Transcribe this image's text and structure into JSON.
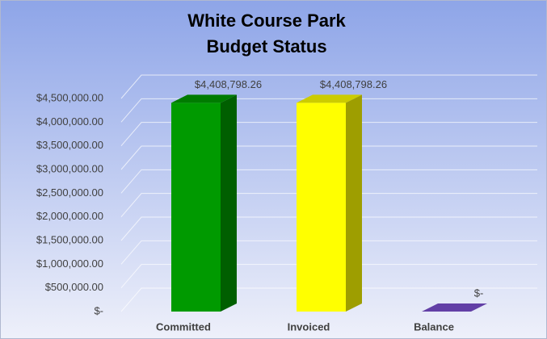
{
  "chart_data": {
    "type": "bar3d",
    "title": [
      "White Course Park",
      "Budget Status"
    ],
    "categories": [
      "Committed",
      "Invoiced",
      "Balance"
    ],
    "values": [
      4408798.26,
      4408798.26,
      0
    ],
    "value_labels": [
      "$4,408,798.26",
      "$4,408,798.26",
      "$-"
    ],
    "colors": [
      "#009a00",
      "#ffff00",
      "#7a4fd0"
    ],
    "ylim": [
      0,
      4500000
    ],
    "yticks": [
      {
        "value": 0,
        "label": "$-"
      },
      {
        "value": 500000,
        "label": "$500,000.00"
      },
      {
        "value": 1000000,
        "label": "$1,000,000.00"
      },
      {
        "value": 1500000,
        "label": "$1,500,000.00"
      },
      {
        "value": 2000000,
        "label": "$2,000,000.00"
      },
      {
        "value": 2500000,
        "label": "$2,500,000.00"
      },
      {
        "value": 3000000,
        "label": "$3,000,000.00"
      },
      {
        "value": 3500000,
        "label": "$3,500,000.00"
      },
      {
        "value": 4000000,
        "label": "$4,000,000.00"
      },
      {
        "value": 4500000,
        "label": "$4,500,000.00"
      }
    ],
    "grid": true
  }
}
